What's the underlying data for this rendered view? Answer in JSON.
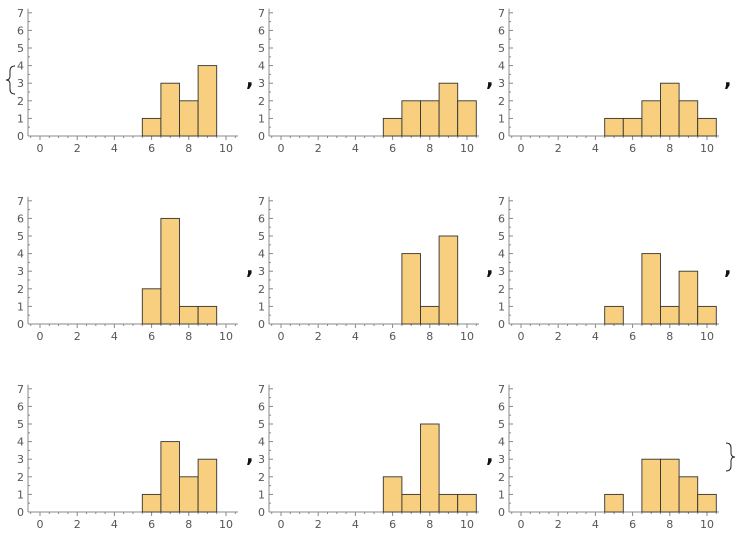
{
  "colors": {
    "bar_fill": "#f8cf7e",
    "bar_stroke": "#333333",
    "axis": "#888888",
    "tick_label": "#555555"
  },
  "separators": {
    "comma": ",",
    "open_brace": "{",
    "close_brace": "}"
  },
  "chart_data": [
    {
      "type": "bar",
      "xlim": [
        0,
        10
      ],
      "ylim": [
        0,
        7
      ],
      "xticks": [
        "0",
        "2",
        "4",
        "6",
        "8",
        "10"
      ],
      "yticks": [
        "0",
        "1",
        "2",
        "3",
        "4",
        "5",
        "6",
        "7"
      ],
      "bins": [
        [
          5.5,
          6.5
        ],
        [
          6.5,
          7.5
        ],
        [
          7.5,
          8.5
        ],
        [
          8.5,
          9.5
        ]
      ],
      "values": [
        1,
        3,
        2,
        4
      ]
    },
    {
      "type": "bar",
      "xlim": [
        0,
        10
      ],
      "ylim": [
        0,
        7
      ],
      "xticks": [
        "0",
        "2",
        "4",
        "6",
        "8",
        "10"
      ],
      "yticks": [
        "0",
        "1",
        "2",
        "3",
        "4",
        "5",
        "6",
        "7"
      ],
      "bins": [
        [
          5.5,
          6.5
        ],
        [
          6.5,
          7.5
        ],
        [
          7.5,
          8.5
        ],
        [
          8.5,
          9.5
        ],
        [
          9.5,
          10.5
        ]
      ],
      "values": [
        1,
        2,
        2,
        3,
        2
      ]
    },
    {
      "type": "bar",
      "xlim": [
        0,
        10
      ],
      "ylim": [
        0,
        7
      ],
      "xticks": [
        "0",
        "2",
        "4",
        "6",
        "8",
        "10"
      ],
      "yticks": [
        "0",
        "1",
        "2",
        "3",
        "4",
        "5",
        "6",
        "7"
      ],
      "bins": [
        [
          4.5,
          5.5
        ],
        [
          5.5,
          6.5
        ],
        [
          6.5,
          7.5
        ],
        [
          7.5,
          8.5
        ],
        [
          8.5,
          9.5
        ],
        [
          9.5,
          10.5
        ]
      ],
      "values": [
        1,
        1,
        2,
        3,
        2,
        1
      ]
    },
    {
      "type": "bar",
      "xlim": [
        0,
        10
      ],
      "ylim": [
        0,
        7
      ],
      "xticks": [
        "0",
        "2",
        "4",
        "6",
        "8",
        "10"
      ],
      "yticks": [
        "0",
        "1",
        "2",
        "3",
        "4",
        "5",
        "6",
        "7"
      ],
      "bins": [
        [
          5.5,
          6.5
        ],
        [
          6.5,
          7.5
        ],
        [
          7.5,
          8.5
        ],
        [
          8.5,
          9.5
        ]
      ],
      "values": [
        2,
        6,
        1,
        1
      ]
    },
    {
      "type": "bar",
      "xlim": [
        0,
        10
      ],
      "ylim": [
        0,
        7
      ],
      "xticks": [
        "0",
        "2",
        "4",
        "6",
        "8",
        "10"
      ],
      "yticks": [
        "0",
        "1",
        "2",
        "3",
        "4",
        "5",
        "6",
        "7"
      ],
      "bins": [
        [
          6.5,
          7.5
        ],
        [
          7.5,
          8.5
        ],
        [
          8.5,
          9.5
        ]
      ],
      "values": [
        4,
        1,
        5
      ]
    },
    {
      "type": "bar",
      "xlim": [
        0,
        10
      ],
      "ylim": [
        0,
        7
      ],
      "xticks": [
        "0",
        "2",
        "4",
        "6",
        "8",
        "10"
      ],
      "yticks": [
        "0",
        "1",
        "2",
        "3",
        "4",
        "5",
        "6",
        "7"
      ],
      "bins": [
        [
          4.5,
          5.5
        ],
        [
          6.5,
          7.5
        ],
        [
          7.5,
          8.5
        ],
        [
          8.5,
          9.5
        ],
        [
          9.5,
          10.5
        ]
      ],
      "values": [
        1,
        4,
        1,
        3,
        1
      ]
    },
    {
      "type": "bar",
      "xlim": [
        0,
        10
      ],
      "ylim": [
        0,
        7
      ],
      "xticks": [
        "0",
        "2",
        "4",
        "6",
        "8",
        "10"
      ],
      "yticks": [
        "0",
        "1",
        "2",
        "3",
        "4",
        "5",
        "6",
        "7"
      ],
      "bins": [
        [
          5.5,
          6.5
        ],
        [
          6.5,
          7.5
        ],
        [
          7.5,
          8.5
        ],
        [
          8.5,
          9.5
        ]
      ],
      "values": [
        1,
        4,
        2,
        3
      ]
    },
    {
      "type": "bar",
      "xlim": [
        0,
        10
      ],
      "ylim": [
        0,
        7
      ],
      "xticks": [
        "0",
        "2",
        "4",
        "6",
        "8",
        "10"
      ],
      "yticks": [
        "0",
        "1",
        "2",
        "3",
        "4",
        "5",
        "6",
        "7"
      ],
      "bins": [
        [
          5.5,
          6.5
        ],
        [
          6.5,
          7.5
        ],
        [
          7.5,
          8.5
        ],
        [
          8.5,
          9.5
        ],
        [
          9.5,
          10.5
        ]
      ],
      "values": [
        2,
        1,
        5,
        1,
        1
      ]
    },
    {
      "type": "bar",
      "xlim": [
        0,
        10
      ],
      "ylim": [
        0,
        7
      ],
      "xticks": [
        "0",
        "2",
        "4",
        "6",
        "8",
        "10"
      ],
      "yticks": [
        "0",
        "1",
        "2",
        "3",
        "4",
        "5",
        "6",
        "7"
      ],
      "bins": [
        [
          4.5,
          5.5
        ],
        [
          6.5,
          7.5
        ],
        [
          7.5,
          8.5
        ],
        [
          8.5,
          9.5
        ],
        [
          9.5,
          10.5
        ]
      ],
      "values": [
        1,
        3,
        3,
        2,
        1
      ]
    }
  ]
}
